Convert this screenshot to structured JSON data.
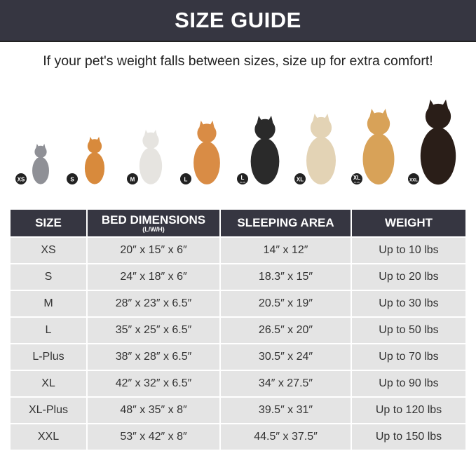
{
  "title": "SIZE GUIDE",
  "subtitle": "If your pet's weight falls between sizes, size up for extra comfort!",
  "pets": [
    {
      "badge": "XS",
      "badge_sub": "",
      "animal": "gray cat",
      "color": "#8f9096"
    },
    {
      "badge": "S",
      "badge_sub": "",
      "animal": "pomeranian",
      "color": "#d88a3c"
    },
    {
      "badge": "M",
      "badge_sub": "",
      "animal": "french bulldog",
      "color": "#e6e4e0"
    },
    {
      "badge": "L",
      "badge_sub": "",
      "animal": "shiba inu",
      "color": "#d98c45"
    },
    {
      "badge": "L",
      "badge_sub": "PLUS",
      "animal": "border collie",
      "color": "#2a2a2a"
    },
    {
      "badge": "XL",
      "badge_sub": "",
      "animal": "labrador",
      "color": "#e3d3b5"
    },
    {
      "badge": "XL",
      "badge_sub": "PLUS",
      "animal": "golden retriever",
      "color": "#d8a258"
    },
    {
      "badge": "XXL",
      "badge_sub": "",
      "animal": "doberman",
      "color": "#2a1e18"
    }
  ],
  "table": {
    "headers": {
      "size": "SIZE",
      "bed": "BED DIMENSIONS",
      "bed_sub": "(L/W/H)",
      "sleep": "SLEEPING AREA",
      "weight": "WEIGHT"
    },
    "rows": [
      [
        "XS",
        "20″ x 15″ x 6″",
        "14″ x 12″",
        "Up to 10 lbs"
      ],
      [
        "S",
        "24″ x 18″ x 6″",
        "18.3″ x 15″",
        "Up to 20 lbs"
      ],
      [
        "M",
        "28″ x 23″ x 6.5″",
        "20.5″ x 19″",
        "Up to 30 lbs"
      ],
      [
        "L",
        "35″ x 25″ x 6.5″",
        "26.5″ x 20″",
        "Up to 50 lbs"
      ],
      [
        "L-Plus",
        "38″ x 28″ x 6.5″",
        "30.5″ x 24″",
        "Up to 70 lbs"
      ],
      [
        "XL",
        "42″ x 32″ x 6.5″",
        "34″ x 27.5″",
        "Up to 90 lbs"
      ],
      [
        "XL-Plus",
        "48″ x 35″ x 8″",
        "39.5″ x 31″",
        "Up to 120 lbs"
      ],
      [
        "XXL",
        "53″ x 42″ x 8″",
        "44.5″ x 37.5″",
        "Up to 150 lbs"
      ]
    ]
  }
}
